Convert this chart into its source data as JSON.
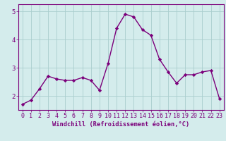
{
  "x": [
    0,
    1,
    2,
    3,
    4,
    5,
    6,
    7,
    8,
    9,
    10,
    11,
    12,
    13,
    14,
    15,
    16,
    17,
    18,
    19,
    20,
    21,
    22,
    23
  ],
  "y": [
    1.7,
    1.85,
    2.25,
    2.7,
    2.6,
    2.55,
    2.55,
    2.65,
    2.55,
    2.2,
    3.15,
    4.4,
    4.9,
    4.8,
    4.35,
    4.15,
    3.3,
    2.85,
    2.45,
    2.75,
    2.75,
    2.85,
    2.9,
    1.9
  ],
  "line_color": "#7b007b",
  "marker": "D",
  "marker_size": 2.2,
  "bg_color": "#d4ecec",
  "grid_color": "#aacece",
  "spine_color": "#7b007b",
  "tick_color": "#7b007b",
  "xlabel": "Windchill (Refroidissement éolien,°C)",
  "xlabel_fontsize": 6.2,
  "xlim": [
    -0.5,
    23.5
  ],
  "ylim": [
    1.5,
    5.25
  ],
  "yticks": [
    2,
    3,
    4,
    5
  ],
  "xticks": [
    0,
    1,
    2,
    3,
    4,
    5,
    6,
    7,
    8,
    9,
    10,
    11,
    12,
    13,
    14,
    15,
    16,
    17,
    18,
    19,
    20,
    21,
    22,
    23
  ],
  "tick_fontsize": 6.0,
  "line_width": 1.0
}
